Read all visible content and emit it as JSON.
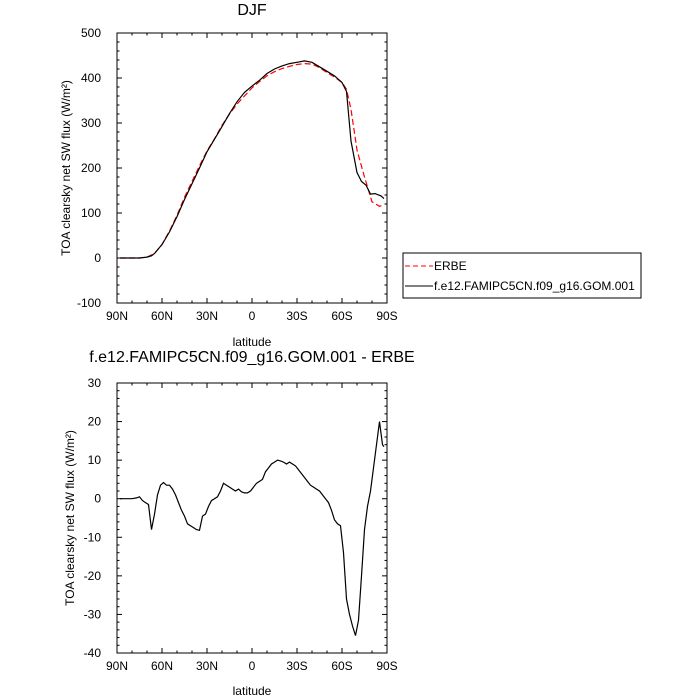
{
  "chart_data": [
    {
      "type": "line",
      "title": "DJF",
      "xlabel": "latitude",
      "ylabel": "TOA clearsky net SW flux (W/m²)",
      "xlim": [
        90,
        -90
      ],
      "ylim": [
        -100,
        500
      ],
      "x_ticks": [
        90,
        60,
        30,
        0,
        -30,
        -60,
        -90
      ],
      "x_tick_labels": [
        "90N",
        "60N",
        "30N",
        "0",
        "30S",
        "60S",
        "90S"
      ],
      "y_ticks": [
        -100,
        0,
        100,
        200,
        300,
        400,
        500
      ],
      "y_tick_labels": [
        "-100",
        "0",
        "100",
        "200",
        "300",
        "400",
        "500"
      ],
      "legend_position": "right",
      "series": [
        {
          "name": "ERBE",
          "color": "#ff0000",
          "dash": "dashed",
          "x": [
            88,
            80,
            75,
            70,
            65,
            60,
            55,
            50,
            45,
            40,
            35,
            30,
            25,
            20,
            15,
            10,
            5,
            0,
            -5,
            -10,
            -15,
            -20,
            -25,
            -30,
            -35,
            -40,
            -45,
            -50,
            -55,
            -60,
            -63,
            -66,
            -70,
            -75,
            -80,
            -85,
            -88
          ],
          "y": [
            0,
            0,
            0,
            2,
            10,
            30,
            60,
            95,
            135,
            170,
            205,
            238,
            265,
            295,
            320,
            342,
            360,
            378,
            392,
            405,
            414,
            421,
            426,
            430,
            432,
            431,
            423,
            412,
            402,
            390,
            375,
            330,
            240,
            180,
            125,
            115,
            118
          ]
        },
        {
          "name": "f.e12.FAMIPC5CN.f09_g16.GOM.001",
          "color": "#000000",
          "dash": "solid",
          "x": [
            88,
            80,
            75,
            70,
            67,
            65,
            60,
            55,
            50,
            45,
            40,
            35,
            30,
            25,
            20,
            15,
            10,
            5,
            0,
            -5,
            -10,
            -15,
            -20,
            -25,
            -30,
            -35,
            -40,
            -45,
            -50,
            -55,
            -60,
            -63,
            -66,
            -70,
            -73,
            -76,
            -79,
            -82,
            -86,
            -88
          ],
          "y": [
            0,
            0,
            0,
            2,
            5,
            10,
            30,
            58,
            92,
            130,
            165,
            200,
            236,
            264,
            292,
            321,
            347,
            368,
            382,
            395,
            410,
            420,
            427,
            432,
            435,
            438,
            435,
            425,
            415,
            405,
            390,
            370,
            260,
            190,
            170,
            162,
            142,
            143,
            138,
            132
          ]
        }
      ]
    },
    {
      "type": "line",
      "title": "f.e12.FAMIPC5CN.f09_g16.GOM.001 - ERBE",
      "xlabel": "latitude",
      "ylabel": "TOA clearsky net SW flux (W/m²)",
      "xlim": [
        90,
        -90
      ],
      "ylim": [
        -40,
        30
      ],
      "x_ticks": [
        90,
        60,
        30,
        0,
        -30,
        -60,
        -90
      ],
      "x_tick_labels": [
        "90N",
        "60N",
        "30N",
        "0",
        "30S",
        "60S",
        "90S"
      ],
      "y_ticks": [
        -40,
        -30,
        -20,
        -10,
        0,
        10,
        20,
        30
      ],
      "y_tick_labels": [
        "-40",
        "-30",
        "-20",
        "-10",
        "0",
        "10",
        "20",
        "30"
      ],
      "series": [
        {
          "color": "#000000",
          "dash": "solid",
          "x": [
            88,
            86,
            83,
            80,
            77,
            75,
            73,
            71,
            69,
            67,
            65,
            63,
            61,
            59,
            57,
            55,
            53,
            51,
            49,
            47,
            45,
            43,
            41,
            39,
            37,
            35,
            33,
            31,
            29,
            27,
            25,
            23,
            21,
            19,
            17,
            15,
            13,
            11,
            9,
            7,
            5,
            3,
            1,
            -1,
            -3,
            -5,
            -7,
            -9,
            -11,
            -13,
            -15,
            -17,
            -19,
            -21,
            -23,
            -25,
            -27,
            -29,
            -31,
            -33,
            -35,
            -37,
            -39,
            -41,
            -43,
            -45,
            -47,
            -49,
            -51,
            -53,
            -55,
            -57,
            -59,
            -61,
            -63,
            -65,
            -67,
            -69,
            -71,
            -73,
            -75,
            -77,
            -79,
            -81,
            -83,
            -85,
            -87,
            -88
          ],
          "y": [
            0,
            0,
            0,
            0,
            0.2,
            0.5,
            -0.5,
            -1.0,
            -1.5,
            -8.0,
            -4.0,
            1.0,
            3.5,
            4.2,
            3.5,
            3.5,
            2.5,
            1.0,
            -1.0,
            -3.0,
            -4.5,
            -6.5,
            -7.0,
            -7.5,
            -8.0,
            -8.2,
            -4.5,
            -4.0,
            -2.0,
            -0.5,
            0.0,
            0.5,
            2.0,
            4.0,
            3.5,
            3.0,
            2.5,
            2.0,
            2.5,
            1.8,
            1.5,
            1.5,
            2.0,
            3.0,
            4.0,
            4.5,
            5.0,
            7.0,
            8.0,
            9.0,
            9.5,
            10.0,
            9.8,
            9.5,
            9.0,
            9.5,
            9.0,
            8.5,
            7.5,
            6.5,
            5.5,
            4.5,
            3.5,
            3.0,
            2.5,
            2.0,
            1.0,
            0.0,
            -1.0,
            -3.0,
            -5.5,
            -6.5,
            -7.0,
            -14.0,
            -26.0,
            -30.0,
            -33.0,
            -35.5,
            -31.5,
            -20.0,
            -8.0,
            -2.0,
            2.0,
            8.0,
            14.0,
            20.0,
            14.0,
            13.5
          ]
        }
      ]
    }
  ]
}
